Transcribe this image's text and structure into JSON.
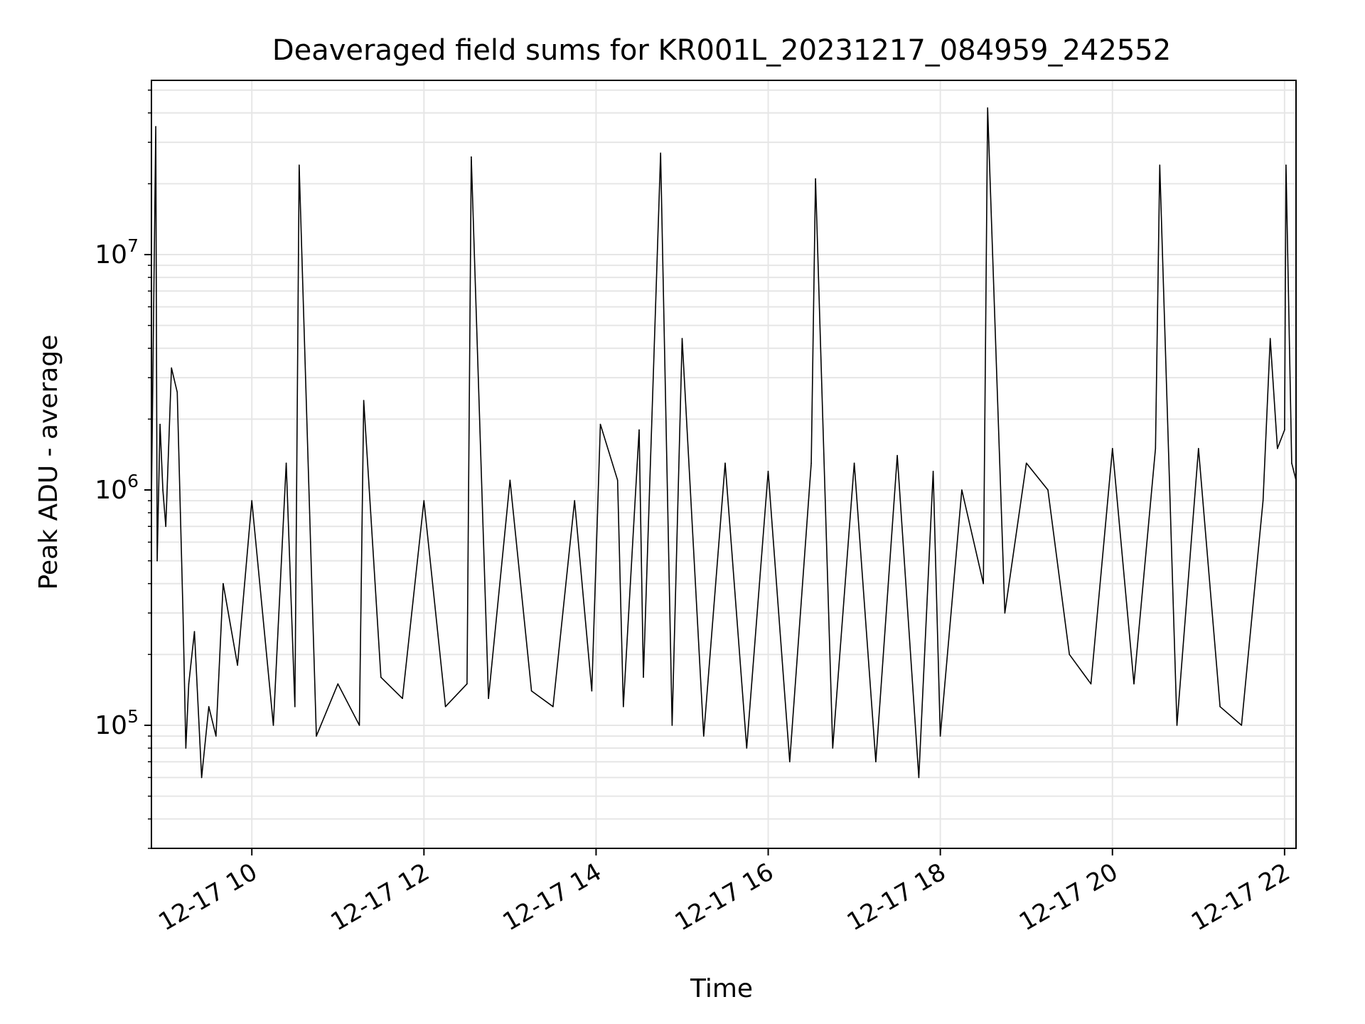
{
  "chart_data": {
    "type": "line",
    "title": "Deaveraged field sums for KR001L_20231217_084959_242552",
    "xlabel": "Time",
    "ylabel": "Peak ADU - average",
    "y_scale": "log",
    "ylim": [
      30000,
      55000000
    ],
    "xlim": [
      "2023-12-17 08:50",
      "2023-12-17 22:08"
    ],
    "grid": true,
    "x_tick_labels": [
      "12-17 10",
      "12-17 12",
      "12-17 14",
      "12-17 16",
      "12-17 18",
      "12-17 20",
      "12-17 22"
    ],
    "x_ticks": [
      "2023-12-17 10:00",
      "2023-12-17 12:00",
      "2023-12-17 14:00",
      "2023-12-17 16:00",
      "2023-12-17 18:00",
      "2023-12-17 20:00",
      "2023-12-17 22:00"
    ],
    "y_tick_labels": [
      {
        "base": "10",
        "exp": "5",
        "value": 100000
      },
      {
        "base": "10",
        "exp": "6",
        "value": 1000000
      },
      {
        "base": "10",
        "exp": "7",
        "value": 10000000
      }
    ],
    "series": [
      {
        "color": "#000000",
        "x": [
          "2023-12-17 08:50",
          "2023-12-17 08:53",
          "2023-12-17 08:54",
          "2023-12-17 08:56",
          "2023-12-17 08:58",
          "2023-12-17 09:00",
          "2023-12-17 09:04",
          "2023-12-17 09:08",
          "2023-12-17 09:12",
          "2023-12-17 09:14",
          "2023-12-17 09:16",
          "2023-12-17 09:20",
          "2023-12-17 09:25",
          "2023-12-17 09:30",
          "2023-12-17 09:35",
          "2023-12-17 09:40",
          "2023-12-17 09:50",
          "2023-12-17 10:00",
          "2023-12-17 10:15",
          "2023-12-17 10:24",
          "2023-12-17 10:30",
          "2023-12-17 10:33",
          "2023-12-17 10:45",
          "2023-12-17 11:00",
          "2023-12-17 11:15",
          "2023-12-17 11:18",
          "2023-12-17 11:30",
          "2023-12-17 11:45",
          "2023-12-17 12:00",
          "2023-12-17 12:15",
          "2023-12-17 12:30",
          "2023-12-17 12:33",
          "2023-12-17 12:45",
          "2023-12-17 13:00",
          "2023-12-17 13:15",
          "2023-12-17 13:30",
          "2023-12-17 13:45",
          "2023-12-17 13:57",
          "2023-12-17 14:03",
          "2023-12-17 14:15",
          "2023-12-17 14:19",
          "2023-12-17 14:30",
          "2023-12-17 14:33",
          "2023-12-17 14:45",
          "2023-12-17 14:53",
          "2023-12-17 15:00",
          "2023-12-17 15:15",
          "2023-12-17 15:30",
          "2023-12-17 15:45",
          "2023-12-17 16:00",
          "2023-12-17 16:15",
          "2023-12-17 16:30",
          "2023-12-17 16:33",
          "2023-12-17 16:45",
          "2023-12-17 17:00",
          "2023-12-17 17:15",
          "2023-12-17 17:30",
          "2023-12-17 17:45",
          "2023-12-17 17:55",
          "2023-12-17 18:00",
          "2023-12-17 18:15",
          "2023-12-17 18:30",
          "2023-12-17 18:33",
          "2023-12-17 18:45",
          "2023-12-17 19:00",
          "2023-12-17 19:15",
          "2023-12-17 19:30",
          "2023-12-17 19:45",
          "2023-12-17 20:00",
          "2023-12-17 20:15",
          "2023-12-17 20:30",
          "2023-12-17 20:33",
          "2023-12-17 20:45",
          "2023-12-17 21:00",
          "2023-12-17 21:15",
          "2023-12-17 21:30",
          "2023-12-17 21:45",
          "2023-12-17 21:50",
          "2023-12-17 21:55",
          "2023-12-17 22:00",
          "2023-12-17 22:01",
          "2023-12-17 22:05",
          "2023-12-17 22:08"
        ],
        "y": [
          900000,
          35000000,
          500000,
          1900000,
          1000000,
          700000,
          3300000,
          2600000,
          300000,
          80000,
          150000,
          250000,
          60000,
          120000,
          90000,
          400000,
          180000,
          900000,
          100000,
          1300000,
          120000,
          24000000,
          90000,
          150000,
          100000,
          2400000,
          160000,
          130000,
          900000,
          120000,
          150000,
          26000000,
          130000,
          1100000,
          140000,
          120000,
          900000,
          140000,
          1900000,
          1100000,
          120000,
          1800000,
          160000,
          27000000,
          100000,
          4400000,
          90000,
          1300000,
          80000,
          1200000,
          70000,
          1300000,
          21000000,
          80000,
          1300000,
          70000,
          1400000,
          60000,
          1200000,
          90000,
          1000000,
          400000,
          42000000,
          300000,
          1300000,
          1000000,
          200000,
          150000,
          1500000,
          150000,
          1500000,
          24000000,
          100000,
          1500000,
          120000,
          100000,
          900000,
          4400000,
          1500000,
          1800000,
          24000000,
          1300000,
          1100000
        ]
      }
    ]
  }
}
